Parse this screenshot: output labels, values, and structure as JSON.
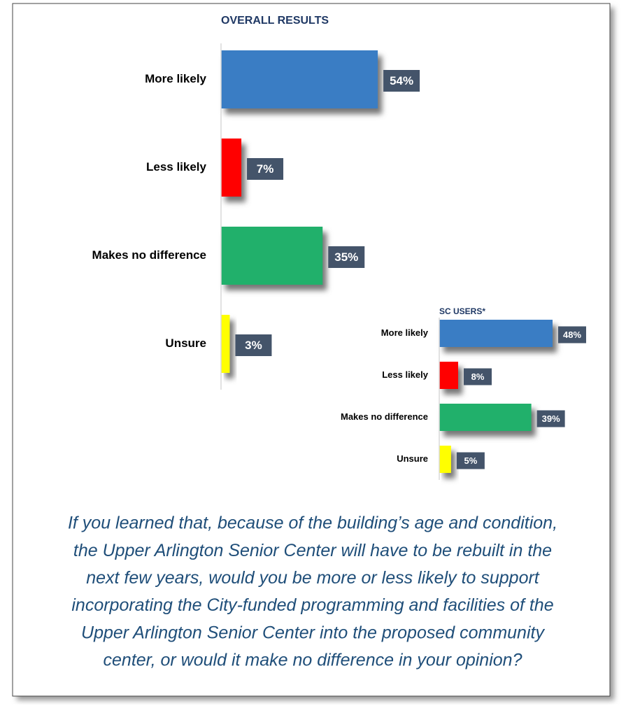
{
  "chart_data": [
    {
      "type": "bar",
      "orientation": "horizontal",
      "title": "OVERALL RESULTS",
      "categories": [
        "More likely",
        "Less likely",
        "Makes no difference",
        "Unsure"
      ],
      "values": [
        54,
        7,
        35,
        3
      ],
      "value_labels": [
        "54%",
        "7%",
        "35%",
        "3%"
      ],
      "colors": [
        "#3a7dc4",
        "#ff0000",
        "#21b06b",
        "#ffff00"
      ]
    },
    {
      "type": "bar",
      "orientation": "horizontal",
      "title": "SC USERS*",
      "categories": [
        "More likely",
        "Less likely",
        "Makes no difference",
        "Unsure"
      ],
      "values": [
        48,
        8,
        39,
        5
      ],
      "value_labels": [
        "48%",
        "8%",
        "39%",
        "5%"
      ],
      "colors": [
        "#3a7dc4",
        "#ff0000",
        "#21b06b",
        "#ffff00"
      ]
    }
  ],
  "question": [
    "If you learned that, because of the building’s age and condition,",
    "the Upper Arlington Senior Center will have to be rebuilt in the",
    "next few years, would you be more or less likely to support",
    "incorporating the City-funded programming and facilities of the",
    "Upper Arlington Senior Center into the  proposed community",
    "center, or would it make no difference in your opinion?"
  ]
}
